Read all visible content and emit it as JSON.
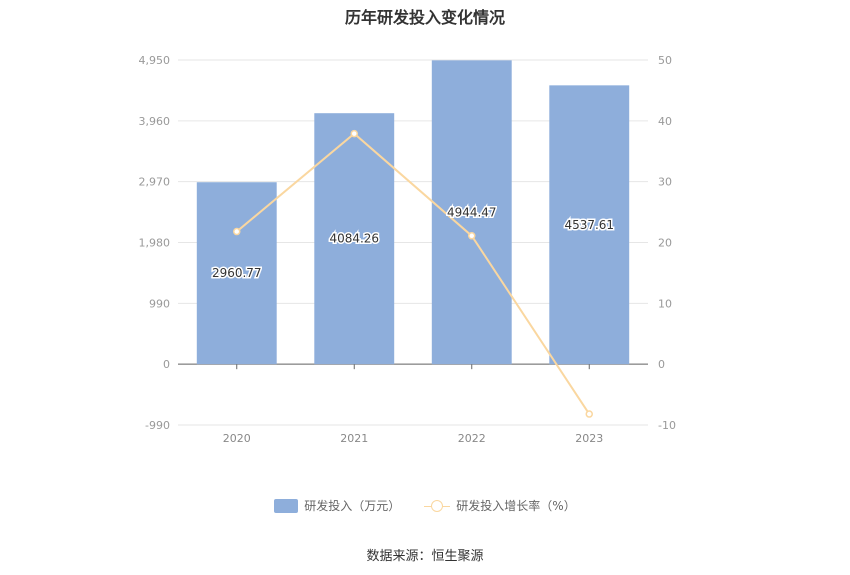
{
  "chart_data": {
    "type": "bar",
    "title": "历年研发投入变化情况",
    "categories": [
      "2020",
      "2021",
      "2022",
      "2023"
    ],
    "series": [
      {
        "name": "研发投入（万元）",
        "type": "bar",
        "axis": "left",
        "color": "#8eaedb",
        "values": [
          2960.77,
          4084.26,
          4944.47,
          4537.61
        ],
        "labels": [
          "2960.77",
          "4084.26",
          "4944.47",
          "4537.61"
        ]
      },
      {
        "name": "研发投入增长率（%）",
        "type": "line",
        "axis": "right",
        "color": "#fad7a0",
        "values": [
          21.8,
          37.9,
          21.1,
          -8.2
        ]
      }
    ],
    "y_left": {
      "ticks": [
        "4,950",
        "3,960",
        "2,970",
        "1,980",
        "990",
        "0",
        "-990"
      ],
      "range": [
        -990,
        4950
      ]
    },
    "y_right": {
      "ticks": [
        "50",
        "40",
        "30",
        "20",
        "10",
        "0",
        "-10"
      ],
      "range": [
        -10,
        50
      ]
    },
    "grid": true,
    "legend_position": "bottom"
  },
  "source": "数据来源：恒生聚源"
}
